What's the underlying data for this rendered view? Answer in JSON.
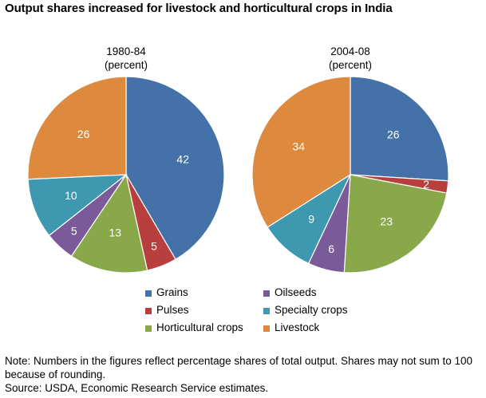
{
  "title": "Output shares increased for livestock and horticultural crops in India",
  "pies": [
    {
      "period": "1980-84",
      "unit": "(percent)"
    },
    {
      "period": "2004-08",
      "unit": "(percent)"
    }
  ],
  "legend": {
    "items": [
      {
        "label": "Grains",
        "color": "#4472a8"
      },
      {
        "label": "Oilseeds",
        "color": "#7a5a98"
      },
      {
        "label": "Pulses",
        "color": "#b7403f"
      },
      {
        "label": "Specialty crops",
        "color": "#3d98b0"
      },
      {
        "label": "Horticultural crops",
        "color": "#88a84a"
      },
      {
        "label": "Livestock",
        "color": "#dd8a3e"
      }
    ]
  },
  "note": {
    "text": "Note: Numbers in the figures reflect percentage shares of total output. Shares may not sum to 100 because of rounding.",
    "source": "Source: USDA, Economic Research Service estimates."
  },
  "chart_data": [
    {
      "type": "pie",
      "title": "1980-84",
      "subtitle": "(percent)",
      "labels": [
        "Grains",
        "Pulses",
        "Horticultural crops",
        "Oilseeds",
        "Specialty crops",
        "Livestock"
      ],
      "values": [
        42,
        5,
        13,
        5,
        10,
        26
      ],
      "colors": [
        "#4472a8",
        "#b7403f",
        "#88a84a",
        "#7a5a98",
        "#3d98b0",
        "#dd8a3e"
      ],
      "start": "12 o'clock",
      "direction": "clockwise"
    },
    {
      "type": "pie",
      "title": "2004-08",
      "subtitle": "(percent)",
      "labels": [
        "Grains",
        "Pulses",
        "Horticultural crops",
        "Oilseeds",
        "Specialty crops",
        "Livestock"
      ],
      "values": [
        26,
        2,
        23,
        6,
        9,
        34
      ],
      "colors": [
        "#4472a8",
        "#b7403f",
        "#88a84a",
        "#7a5a98",
        "#3d98b0",
        "#dd8a3e"
      ],
      "start": "12 o'clock",
      "direction": "clockwise"
    }
  ]
}
